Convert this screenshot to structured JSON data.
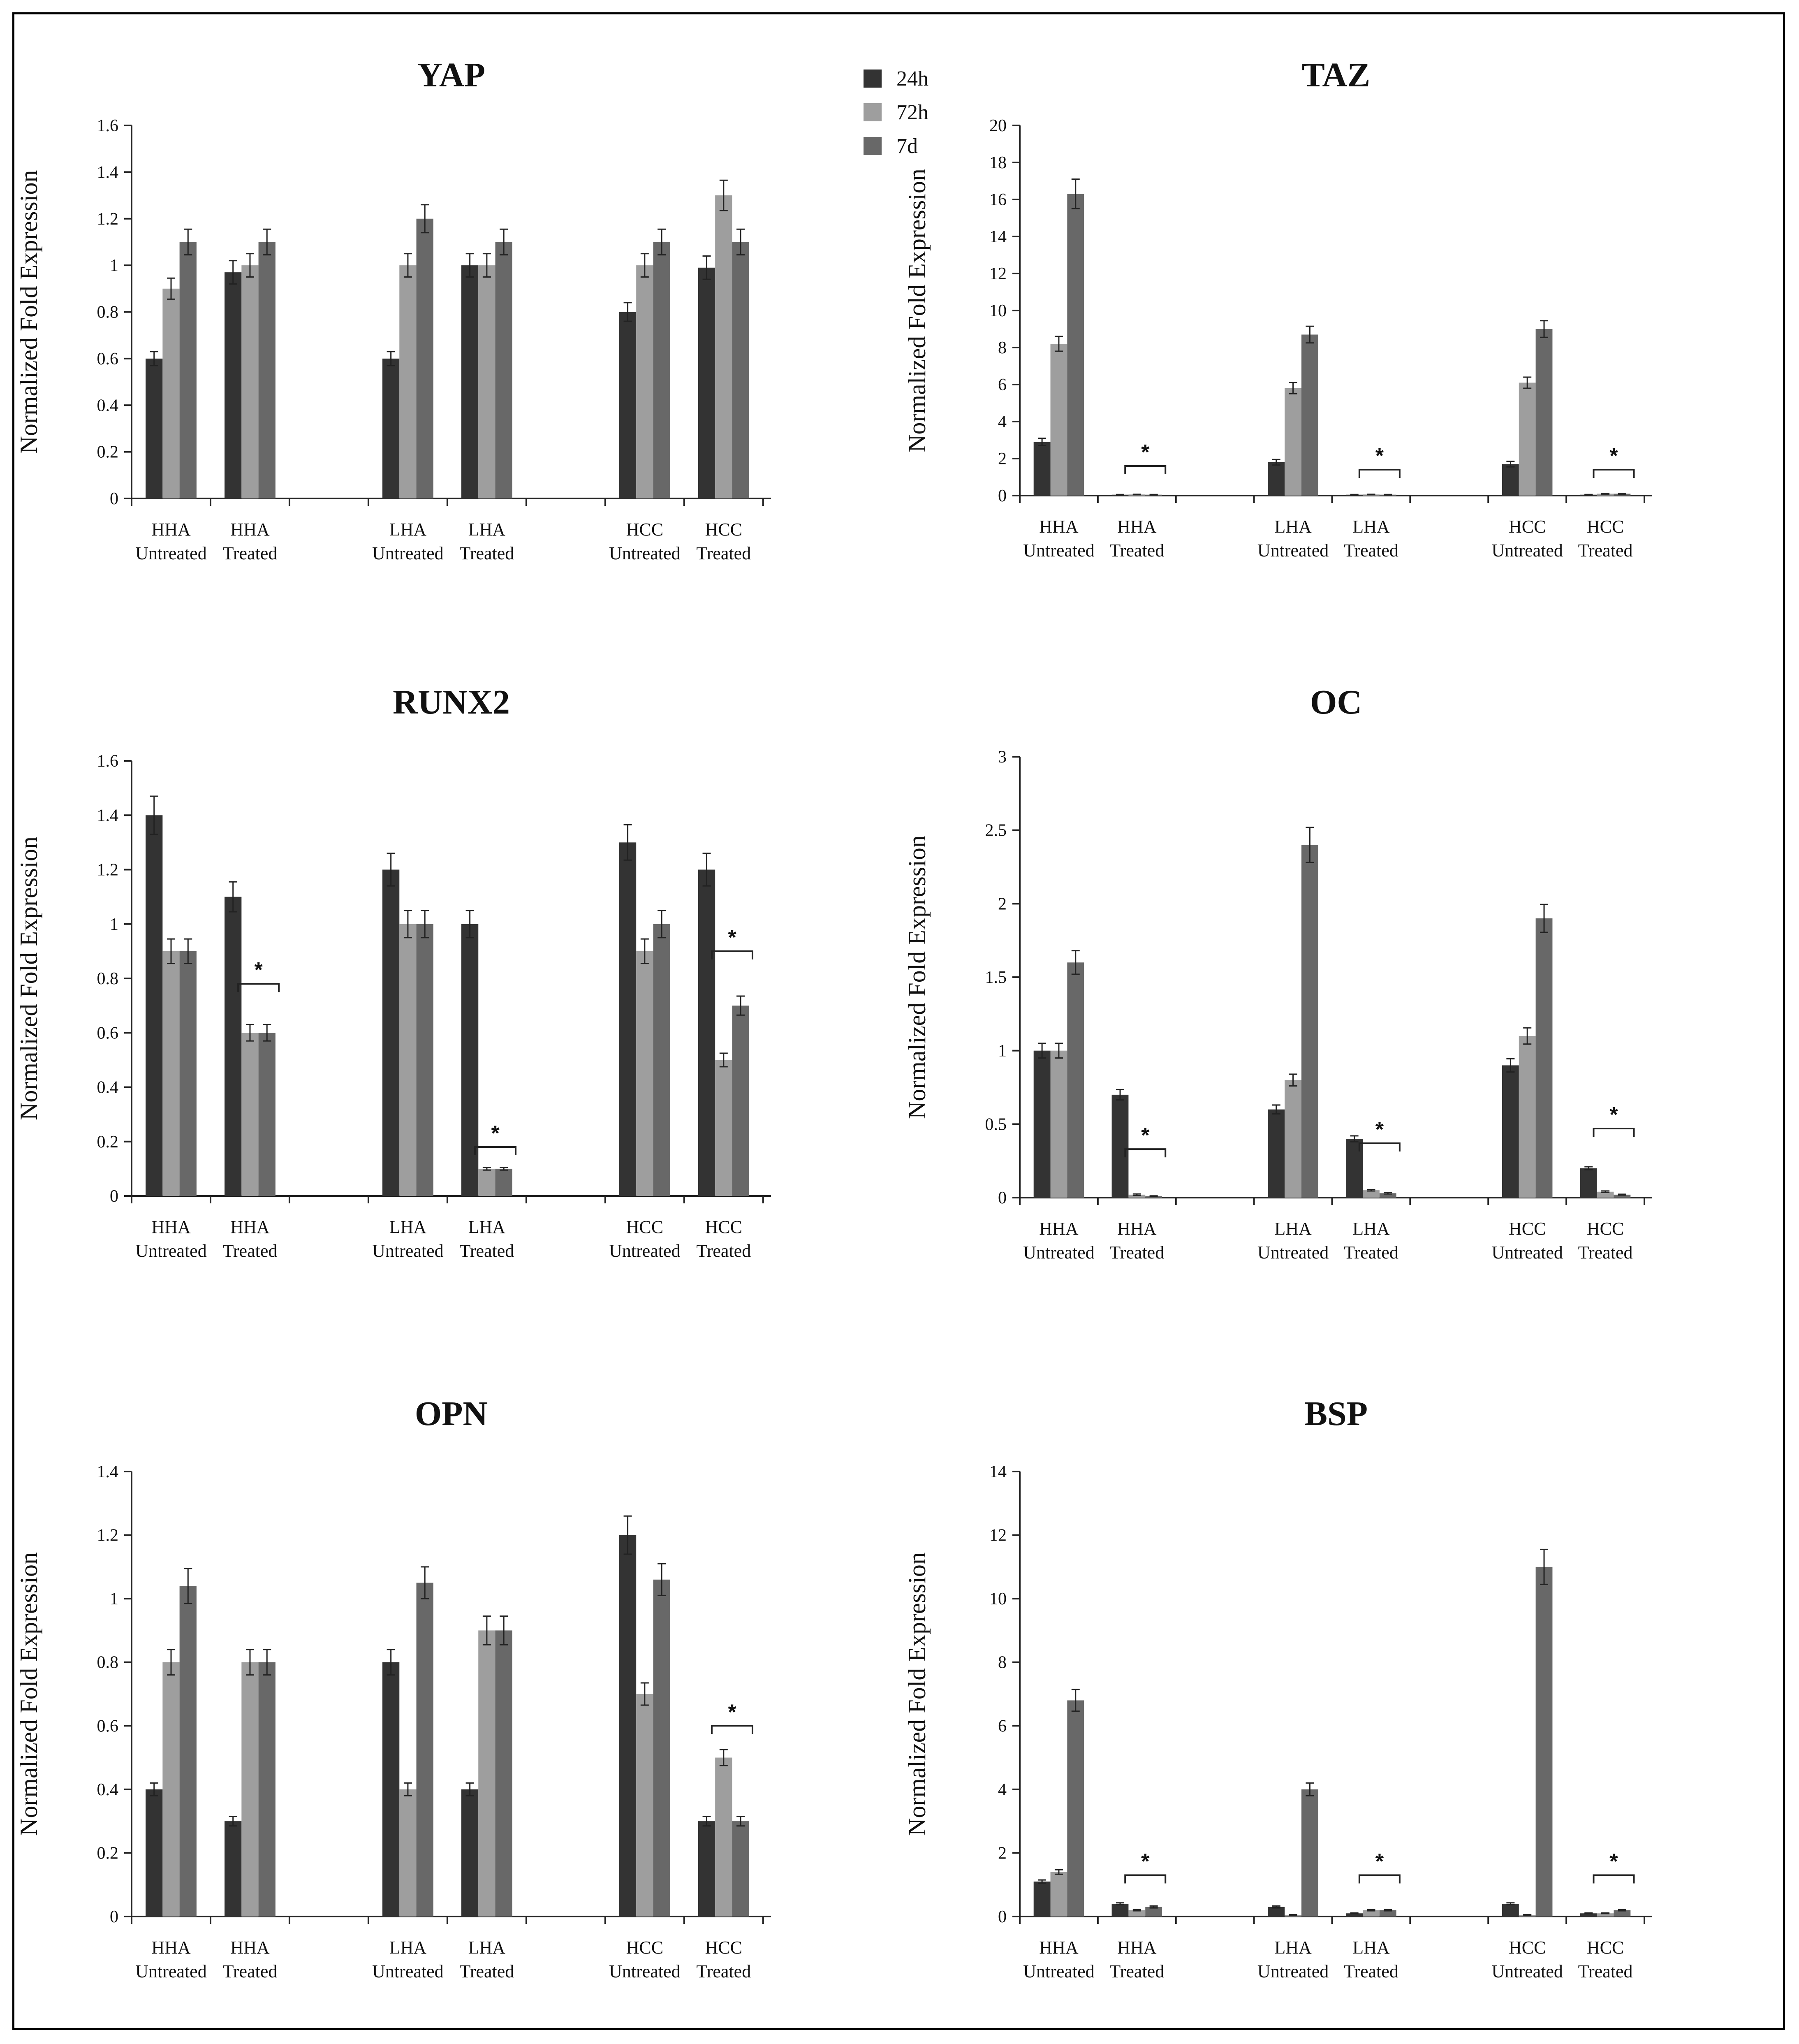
{
  "colors": {
    "24h": "#333333",
    "72h": "#9e9e9e",
    "7d": "#686868"
  },
  "legend": [
    {
      "label": "24h",
      "color": "#333333"
    },
    {
      "label": "72h",
      "color": "#9e9e9e"
    },
    {
      "label": "7d",
      "color": "#686868"
    }
  ],
  "chart_data": [
    {
      "type": "bar",
      "title": "YAP",
      "ylabel": "Normalized Fold Expression",
      "xlabel": "",
      "ylim": [
        0,
        1.6
      ],
      "yticks": [
        "0",
        "0.2",
        "0.4",
        "0.6",
        "0.8",
        "1",
        "1.2",
        "1.4",
        "1.6"
      ],
      "categories": [
        "HHA Untreated",
        "HHA Treated",
        "LHA Untreated",
        "LHA Treated",
        "HCC Untreated",
        "HCC Treated"
      ],
      "category_lines": [
        [
          "HHA",
          "Untreated"
        ],
        [
          "HHA",
          "Treated"
        ],
        [
          "LHA",
          "Untreated"
        ],
        [
          "LHA",
          "Treated"
        ],
        [
          "HCC",
          "Untreated"
        ],
        [
          "HCC",
          "Treated"
        ]
      ],
      "series": [
        {
          "name": "24h",
          "values": [
            0.6,
            0.97,
            0.6,
            1.0,
            0.8,
            0.99
          ],
          "errors": [
            0.03,
            0.05,
            0.03,
            0.05,
            0.04,
            0.05
          ]
        },
        {
          "name": "72h",
          "values": [
            0.9,
            1.0,
            1.0,
            1.0,
            1.0,
            1.3
          ],
          "errors": [
            0.045,
            0.05,
            0.05,
            0.05,
            0.05,
            0.065
          ]
        },
        {
          "name": "7d",
          "values": [
            1.1,
            1.1,
            1.2,
            1.1,
            1.1,
            1.1
          ],
          "errors": [
            0.055,
            0.055,
            0.06,
            0.055,
            0.055,
            0.055
          ]
        }
      ],
      "significance": []
    },
    {
      "type": "bar",
      "title": "TAZ",
      "ylabel": "Normalized Fold Expression",
      "xlabel": "",
      "ylim": [
        0,
        20
      ],
      "yticks": [
        "0",
        "2",
        "4",
        "6",
        "8",
        "10",
        "12",
        "14",
        "16",
        "18",
        "20"
      ],
      "categories": [
        "HHA Untreated",
        "HHA Treated",
        "LHA Untreated",
        "LHA Treated",
        "HCC Untreated",
        "HCC Treated"
      ],
      "category_lines": [
        [
          "HHA",
          "Untreated"
        ],
        [
          "HHA",
          "Treated"
        ],
        [
          "LHA",
          "Untreated"
        ],
        [
          "LHA",
          "Treated"
        ],
        [
          "HCC",
          "Untreated"
        ],
        [
          "HCC",
          "Treated"
        ]
      ],
      "series": [
        {
          "name": "24h",
          "values": [
            2.9,
            0.05,
            1.8,
            0.05,
            1.7,
            0.05
          ],
          "errors": [
            0.2,
            0.01,
            0.15,
            0.01,
            0.15,
            0.01
          ]
        },
        {
          "name": "72h",
          "values": [
            8.2,
            0.06,
            5.8,
            0.06,
            6.1,
            0.1
          ],
          "errors": [
            0.4,
            0.01,
            0.3,
            0.01,
            0.3,
            0.02
          ]
        },
        {
          "name": "7d",
          "values": [
            16.3,
            0.05,
            8.7,
            0.05,
            9.0,
            0.1
          ],
          "errors": [
            0.8,
            0.01,
            0.45,
            0.01,
            0.45,
            0.02
          ]
        }
      ],
      "significance": [
        {
          "category": 1,
          "label": "*",
          "y": 1.6
        },
        {
          "category": 3,
          "label": "*",
          "y": 1.4
        },
        {
          "category": 5,
          "label": "*",
          "y": 1.4
        }
      ]
    },
    {
      "type": "bar",
      "title": "RUNX2",
      "ylabel": "Normalized Fold Expression",
      "xlabel": "",
      "ylim": [
        0,
        1.6
      ],
      "yticks": [
        "0",
        "0.2",
        "0.4",
        "0.6",
        "0.8",
        "1",
        "1.2",
        "1.4",
        "1.6"
      ],
      "categories": [
        "HHA Untreated",
        "HHA Treated",
        "LHA Untreated",
        "LHA Treated",
        "HCC Untreated",
        "HCC Treated"
      ],
      "category_lines": [
        [
          "HHA",
          "Untreated"
        ],
        [
          "HHA",
          "Treated"
        ],
        [
          "LHA",
          "Untreated"
        ],
        [
          "LHA",
          "Treated"
        ],
        [
          "HCC",
          "Untreated"
        ],
        [
          "HCC",
          "Treated"
        ]
      ],
      "series": [
        {
          "name": "24h",
          "values": [
            1.4,
            1.1,
            1.2,
            1.0,
            1.3,
            1.2
          ],
          "errors": [
            0.07,
            0.055,
            0.06,
            0.05,
            0.065,
            0.06
          ]
        },
        {
          "name": "72h",
          "values": [
            0.9,
            0.6,
            1.0,
            0.1,
            0.9,
            0.5
          ],
          "errors": [
            0.045,
            0.03,
            0.05,
            0.005,
            0.045,
            0.025
          ]
        },
        {
          "name": "7d",
          "values": [
            0.9,
            0.6,
            1.0,
            0.1,
            1.0,
            0.7
          ],
          "errors": [
            0.045,
            0.03,
            0.05,
            0.005,
            0.05,
            0.035
          ]
        }
      ],
      "significance": [
        {
          "category": 1,
          "label": "*",
          "y": 0.78
        },
        {
          "category": 3,
          "label": "*",
          "y": 0.18
        },
        {
          "category": 5,
          "label": "*",
          "y": 0.9
        }
      ]
    },
    {
      "type": "bar",
      "title": "OC",
      "ylabel": "Normalized Fold Expression",
      "xlabel": "",
      "ylim": [
        0,
        3
      ],
      "yticks": [
        "0",
        "0.5",
        "1",
        "1.5",
        "2",
        "2.5",
        "3"
      ],
      "categories": [
        "HHA Untreated",
        "HHA Treated",
        "LHA Untreated",
        "LHA Treated",
        "HCC Untreated",
        "HCC Treated"
      ],
      "category_lines": [
        [
          "HHA",
          "Untreated"
        ],
        [
          "HHA",
          "Treated"
        ],
        [
          "LHA",
          "Untreated"
        ],
        [
          "LHA",
          "Treated"
        ],
        [
          "HCC",
          "Untreated"
        ],
        [
          "HCC",
          "Treated"
        ]
      ],
      "series": [
        {
          "name": "24h",
          "values": [
            1.0,
            0.7,
            0.6,
            0.4,
            0.9,
            0.2
          ],
          "errors": [
            0.05,
            0.035,
            0.03,
            0.02,
            0.045,
            0.01
          ]
        },
        {
          "name": "72h",
          "values": [
            1.0,
            0.02,
            0.8,
            0.05,
            1.1,
            0.04
          ],
          "errors": [
            0.05,
            0.005,
            0.04,
            0.005,
            0.055,
            0.005
          ]
        },
        {
          "name": "7d",
          "values": [
            1.6,
            0.01,
            2.4,
            0.03,
            1.9,
            0.02
          ],
          "errors": [
            0.08,
            0.002,
            0.12,
            0.005,
            0.095,
            0.003
          ]
        }
      ],
      "significance": [
        {
          "category": 1,
          "label": "*",
          "y": 0.33
        },
        {
          "category": 3,
          "label": "*",
          "y": 0.37
        },
        {
          "category": 5,
          "label": "*",
          "y": 0.47
        }
      ]
    },
    {
      "type": "bar",
      "title": "OPN",
      "ylabel": "Normalized Fold Expression",
      "xlabel": "",
      "ylim": [
        0,
        1.4
      ],
      "yticks": [
        "0",
        "0.2",
        "0.4",
        "0.6",
        "0.8",
        "1",
        "1.2",
        "1.4"
      ],
      "categories": [
        "HHA Untreated",
        "HHA Treated",
        "LHA Untreated",
        "LHA Treated",
        "HCC Untreated",
        "HCC Treated"
      ],
      "category_lines": [
        [
          "HHA",
          "Untreated"
        ],
        [
          "HHA",
          "Treated"
        ],
        [
          "LHA",
          "Untreated"
        ],
        [
          "LHA",
          "Treated"
        ],
        [
          "HCC",
          "Untreated"
        ],
        [
          "HCC",
          "Treated"
        ]
      ],
      "series": [
        {
          "name": "24h",
          "values": [
            0.4,
            0.3,
            0.8,
            0.4,
            1.2,
            0.3
          ],
          "errors": [
            0.02,
            0.015,
            0.04,
            0.02,
            0.06,
            0.015
          ]
        },
        {
          "name": "72h",
          "values": [
            0.8,
            0.8,
            0.4,
            0.9,
            0.7,
            0.5
          ],
          "errors": [
            0.04,
            0.04,
            0.02,
            0.045,
            0.035,
            0.025
          ]
        },
        {
          "name": "7d",
          "values": [
            1.04,
            0.8,
            1.05,
            0.9,
            1.06,
            0.3
          ],
          "errors": [
            0.055,
            0.04,
            0.05,
            0.045,
            0.05,
            0.015
          ]
        }
      ],
      "significance": [
        {
          "category": 5,
          "label": "*",
          "y": 0.6
        }
      ]
    },
    {
      "type": "bar",
      "title": "BSP",
      "ylabel": "Normalized Fold Expression",
      "xlabel": "",
      "ylim": [
        0,
        14
      ],
      "yticks": [
        "0",
        "2",
        "4",
        "6",
        "8",
        "10",
        "12",
        "14"
      ],
      "categories": [
        "HHA Untreated",
        "HHA Treated",
        "LHA Untreated",
        "LHA Treated",
        "HCC Untreated",
        "HCC Treated"
      ],
      "category_lines": [
        [
          "HHA",
          "Untreated"
        ],
        [
          "HHA",
          "Treated"
        ],
        [
          "LHA",
          "Untreated"
        ],
        [
          "LHA",
          "Treated"
        ],
        [
          "HCC",
          "Untreated"
        ],
        [
          "HCC",
          "Treated"
        ]
      ],
      "series": [
        {
          "name": "24h",
          "values": [
            1.1,
            0.4,
            0.3,
            0.1,
            0.4,
            0.1
          ],
          "errors": [
            0.05,
            0.03,
            0.03,
            0.01,
            0.03,
            0.01
          ]
        },
        {
          "name": "72h",
          "values": [
            1.4,
            0.2,
            0.05,
            0.2,
            0.05,
            0.1
          ],
          "errors": [
            0.07,
            0.02,
            0.01,
            0.02,
            0.01,
            0.01
          ]
        },
        {
          "name": "7d",
          "values": [
            6.8,
            0.3,
            4.0,
            0.2,
            11.0,
            0.2
          ],
          "errors": [
            0.34,
            0.03,
            0.2,
            0.02,
            0.55,
            0.02
          ]
        }
      ],
      "significance": [
        {
          "category": 1,
          "label": "*",
          "y": 1.3
        },
        {
          "category": 3,
          "label": "*",
          "y": 1.3
        },
        {
          "category": 5,
          "label": "*",
          "y": 1.3
        }
      ]
    }
  ]
}
